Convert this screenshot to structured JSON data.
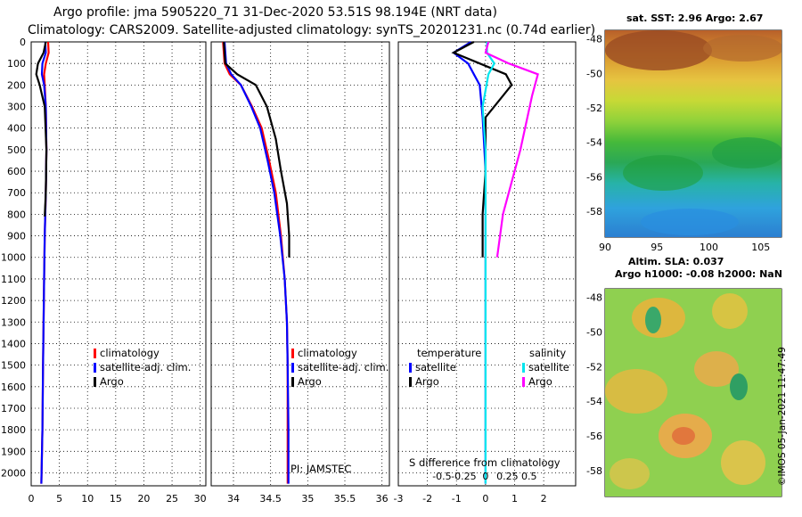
{
  "header": {
    "line1": "Argo profile: jma 5905220_71 31-Dec-2020 53.51S 98.194E (NRT data)",
    "line2": "Climatology: CARS2009. Satellite-adjusted climatology: synTS_20201231.nc (0.74d earlier)"
  },
  "colors": {
    "climatology": "#ff0000",
    "satellite": "#0000ff",
    "argo": "#000000",
    "satellite_salinity": "#00e5ee",
    "argo_salinity": "#ff00ff"
  },
  "chart_data": [
    {
      "type": "line",
      "panel": "temperature",
      "xlim": [
        0,
        31
      ],
      "xticks": [
        "0",
        "5",
        "10",
        "15",
        "20",
        "25",
        "30"
      ],
      "xtick_values": [
        0,
        5,
        10,
        15,
        20,
        25,
        30
      ],
      "ylim": [
        0,
        2060
      ],
      "yticks": [
        "0",
        "100",
        "200",
        "300",
        "400",
        "500",
        "600",
        "700",
        "800",
        "900",
        "1000",
        "1100",
        "1200",
        "1300",
        "1400",
        "1500",
        "1600",
        "1700",
        "1800",
        "1900",
        "2000"
      ],
      "ytick_values": [
        0,
        100,
        200,
        300,
        400,
        500,
        600,
        700,
        800,
        900,
        1000,
        1100,
        1200,
        1300,
        1400,
        1500,
        1600,
        1700,
        1800,
        1900,
        2000
      ],
      "legend": [
        "climatology",
        "satellite-adj. clim.",
        "Argo"
      ],
      "series": [
        {
          "name": "climatology",
          "color": "#ff0000",
          "x": [
            3.0,
            3.1,
            2.6,
            2.3,
            2.4,
            2.6,
            2.7,
            2.6,
            2.4,
            2.3,
            2.2,
            2.1,
            2.0,
            1.8
          ],
          "y": [
            0,
            50,
            100,
            150,
            200,
            300,
            500,
            700,
            900,
            1100,
            1300,
            1500,
            1800,
            2050
          ]
        },
        {
          "name": "satellite-adj. clim.",
          "color": "#0000ff",
          "x": [
            2.5,
            2.6,
            2.0,
            1.9,
            2.3,
            2.6,
            2.7,
            2.6,
            2.4,
            2.3,
            2.2,
            2.1,
            2.0,
            1.8
          ],
          "y": [
            0,
            50,
            100,
            150,
            200,
            300,
            500,
            700,
            900,
            1100,
            1300,
            1500,
            1800,
            2050
          ]
        },
        {
          "name": "Argo",
          "color": "#000000",
          "x": [
            2.6,
            2.2,
            1.2,
            0.9,
            1.5,
            2.4,
            2.7,
            2.6,
            2.4
          ],
          "y": [
            0,
            50,
            100,
            150,
            200,
            300,
            500,
            700,
            810
          ]
        }
      ]
    },
    {
      "type": "line",
      "panel": "salinity",
      "xlim": [
        33.7,
        36.1
      ],
      "xticks": [
        "34",
        "34.5",
        "35",
        "35.5",
        "36"
      ],
      "xtick_values": [
        34,
        34.5,
        35,
        35.5,
        36
      ],
      "ylim": [
        0,
        2060
      ],
      "legend": [
        "climatology",
        "satellite-adj. clim.",
        "Argo"
      ],
      "annotation": "PI: JAMSTEC",
      "series": [
        {
          "name": "climatology",
          "color": "#ff0000",
          "x": [
            33.86,
            33.88,
            33.95,
            34.1,
            34.25,
            34.38,
            34.48,
            34.57,
            34.64,
            34.69,
            34.72,
            34.73,
            34.73,
            34.73
          ],
          "y": [
            0,
            100,
            150,
            200,
            300,
            400,
            550,
            700,
            900,
            1100,
            1300,
            1500,
            1800,
            2050
          ]
        },
        {
          "name": "satellite-adj. clim.",
          "color": "#0000ff",
          "x": [
            33.88,
            33.9,
            33.97,
            34.1,
            34.24,
            34.36,
            34.46,
            34.55,
            34.63,
            34.69,
            34.72,
            34.73,
            34.74,
            34.74
          ],
          "y": [
            0,
            100,
            150,
            200,
            300,
            400,
            550,
            700,
            900,
            1100,
            1300,
            1500,
            1800,
            2050
          ]
        },
        {
          "name": "Argo",
          "color": "#000000",
          "x": [
            33.87,
            33.89,
            34.05,
            34.3,
            34.45,
            34.57,
            34.64,
            34.72,
            34.75,
            34.75
          ],
          "y": [
            0,
            100,
            150,
            200,
            300,
            450,
            600,
            750,
            900,
            1000
          ]
        }
      ]
    },
    {
      "type": "line",
      "panel": "difference",
      "xlim": [
        -3,
        3.1
      ],
      "xticks": [
        "-3",
        "-2",
        "-1",
        "0",
        "1",
        "2"
      ],
      "xtick_values": [
        -3,
        -2,
        -1,
        0,
        1,
        2
      ],
      "s_xticks": [
        "-0.5",
        "-0.25",
        "0",
        "0.25",
        "0.5"
      ],
      "s_xtick_values": [
        -1.5,
        -0.75,
        0,
        0.75,
        1.5
      ],
      "s_label": "S difference from climatology",
      "ylim": [
        0,
        2060
      ],
      "legend_groups": [
        {
          "title": "temperature",
          "entries": [
            "satellite",
            "Argo"
          ]
        },
        {
          "title": "salinity",
          "entries": [
            "satellite",
            "Argo"
          ]
        }
      ],
      "series": [
        {
          "name": "temperature satellite",
          "color": "#0000ff",
          "x": [
            -0.5,
            -1.1,
            -0.6,
            -0.4,
            -0.2,
            -0.1,
            0.0,
            0.0,
            0.0,
            0.0,
            0.0
          ],
          "y": [
            0,
            50,
            100,
            150,
            200,
            350,
            600,
            900,
            1200,
            1600,
            2050
          ]
        },
        {
          "name": "temperature Argo",
          "color": "#000000",
          "x": [
            -0.4,
            -1.1,
            -0.2,
            0.7,
            0.9,
            0.0,
            0.0,
            -0.1,
            -0.1
          ],
          "y": [
            0,
            50,
            100,
            150,
            200,
            350,
            600,
            800,
            1000
          ]
        },
        {
          "name": "salinity satellite",
          "color": "#00e5ee",
          "x": [
            0.05,
            0.05,
            0.3,
            0.1,
            -0.1,
            0.0,
            0.0,
            0.0,
            0.0,
            0.0
          ],
          "y": [
            0,
            50,
            100,
            150,
            300,
            500,
            800,
            1200,
            1600,
            2050
          ]
        },
        {
          "name": "salinity Argo",
          "color": "#ff00ff",
          "x": [
            0.1,
            0.0,
            0.8,
            1.8,
            1.6,
            1.2,
            0.6,
            0.4
          ],
          "y": [
            0,
            50,
            100,
            150,
            250,
            500,
            800,
            1000
          ]
        }
      ]
    },
    {
      "type": "heatmap",
      "panel": "sst-map",
      "title": "sat. SST: 2.96 Argo: 2.67",
      "xlim": [
        90,
        107
      ],
      "xticks": [
        "90",
        "95",
        "100",
        "105"
      ],
      "xtick_values": [
        90,
        95,
        100,
        105
      ],
      "ylim": [
        -59.5,
        -47.5
      ],
      "yticks": [
        "-48",
        "-50",
        "-52",
        "-54",
        "-56",
        "-58"
      ],
      "ytick_values": [
        -48,
        -50,
        -52,
        -54,
        -56,
        -58
      ],
      "profile_position": [
        98.194,
        -53.51
      ]
    },
    {
      "type": "heatmap",
      "panel": "sla-map",
      "title_lines": [
        "Altim. SLA: 0.037",
        "Argo h1000: -0.08 h2000: NaN"
      ],
      "ylim": [
        -59.5,
        -47.5
      ],
      "yticks": [
        "-48",
        "-50",
        "-52",
        "-54",
        "-56",
        "-58"
      ],
      "ytick_values": [
        -48,
        -50,
        -52,
        -54,
        -56,
        -58
      ]
    }
  ],
  "credit": "©IMOS 05-Jan-2021 11:47:49"
}
